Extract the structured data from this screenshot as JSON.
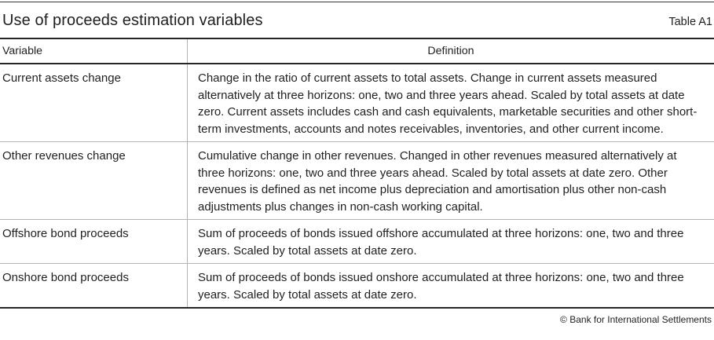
{
  "page": {
    "title": "Use of proceeds estimation variables",
    "table_label": "Table A1",
    "footer": "© Bank for International Settlements"
  },
  "table": {
    "columns": [
      "Variable",
      "Definition"
    ],
    "rows": [
      {
        "variable": "Current assets change",
        "definition": "Change in the ratio of current assets to total assets. Change in current assets measured alternatively at three horizons: one, two and three years ahead. Scaled by total assets at date zero. Current assets includes cash and cash equivalents, marketable securities and other short-term investments, accounts and notes receivables, inventories, and other current income."
      },
      {
        "variable": "Other revenues change",
        "definition": "Cumulative change in other revenues. Changed in other revenues measured alternatively at three horizons: one, two and three years ahead. Scaled by total assets at date zero. Other revenues is defined as net income plus depreciation and amortisation plus other non-cash adjustments plus changes in non-cash working capital."
      },
      {
        "variable": "Offshore bond proceeds",
        "definition": "Sum of proceeds of bonds issued offshore accumulated at three horizons: one, two and three years. Scaled by total assets at date zero."
      },
      {
        "variable": "Onshore bond proceeds",
        "definition": "Sum of proceeds of bonds issued onshore accumulated at three horizons: one, two and three years. Scaled by total assets at date zero."
      }
    ]
  },
  "colors": {
    "text": "#1f1f1f",
    "rule_dark": "#262626",
    "rule_light": "#b3b3b3"
  }
}
